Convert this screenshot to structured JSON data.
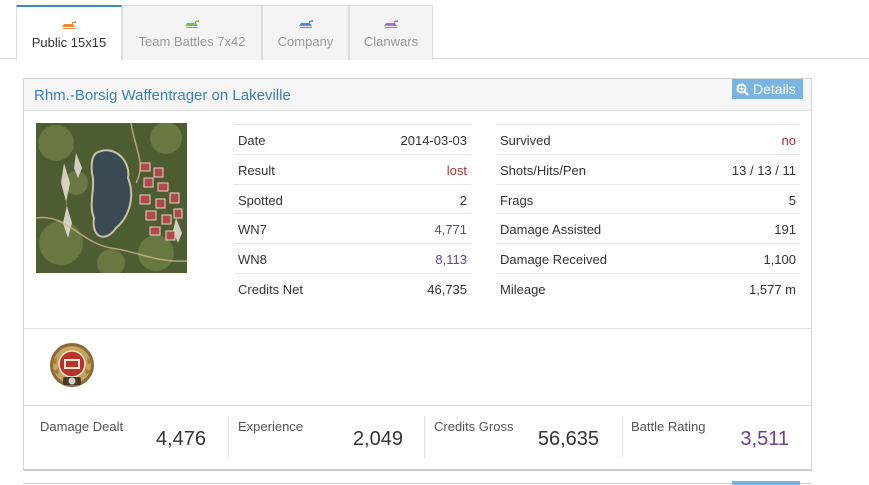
{
  "tabs": [
    {
      "label": "Public 15x15",
      "active": true,
      "icon_color": "#e8893a"
    },
    {
      "label": "Team Battles 7x42",
      "active": false,
      "icon_color": "#7cbf4a"
    },
    {
      "label": "Company",
      "active": false,
      "icon_color": "#5a8fd0"
    },
    {
      "label": "Clanwars",
      "active": false,
      "icon_color": "#a678c8"
    }
  ],
  "battle": {
    "title": "Rhm.-Borsig Waffentrager on Lakeville",
    "details_label": "Details",
    "left_stats": [
      {
        "label": "Date",
        "value": "2014-03-03",
        "tone": "normal"
      },
      {
        "label": "Result",
        "value": "lost",
        "tone": "red"
      },
      {
        "label": "Spotted",
        "value": "2",
        "tone": "normal"
      },
      {
        "label": "WN7",
        "value": "4,771",
        "tone": "purple"
      },
      {
        "label": "WN8",
        "value": "8,113",
        "tone": "purple"
      },
      {
        "label": "Credits Net",
        "value": "46,735",
        "tone": "normal"
      }
    ],
    "right_stats": [
      {
        "label": "Survived",
        "value": "no",
        "tone": "red"
      },
      {
        "label": "Shots/Hits/Pen",
        "value": "13 / 13 / 11",
        "tone": "normal"
      },
      {
        "label": "Frags",
        "value": "5",
        "tone": "normal"
      },
      {
        "label": "Damage Assisted",
        "value": "191",
        "tone": "normal"
      },
      {
        "label": "Damage Received",
        "value": "1,100",
        "tone": "normal"
      },
      {
        "label": "Mileage",
        "value": "1,577 m",
        "tone": "normal"
      }
    ],
    "summary": [
      {
        "label": "Damage Dealt",
        "value": "4,476",
        "tone": "normal"
      },
      {
        "label": "Experience",
        "value": "2,049",
        "tone": "normal"
      },
      {
        "label": "Credits Gross",
        "value": "56,635",
        "tone": "normal"
      },
      {
        "label": "Battle Rating",
        "value": "3,511",
        "tone": "purple"
      }
    ],
    "medal_icon": "medal-badge-icon"
  },
  "colors": {
    "accent": "#3a80c0",
    "details_bg": "#7ab4e0",
    "negative": "#b03030",
    "rating": "#6a3d9a"
  }
}
